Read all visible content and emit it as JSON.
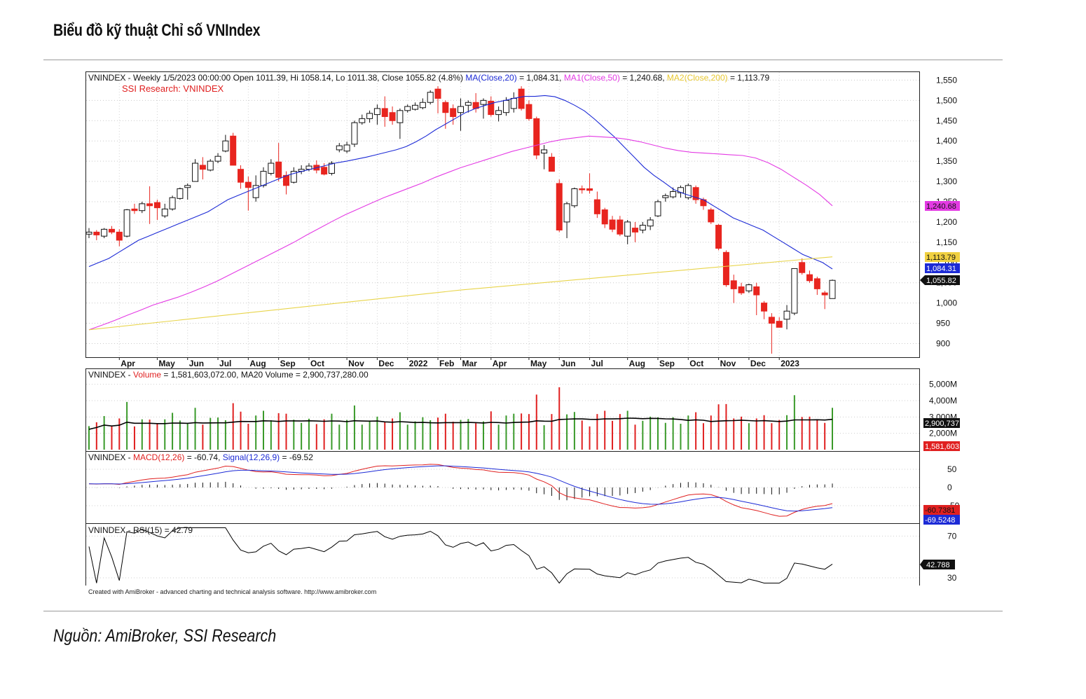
{
  "page": {
    "title": "Biểu đồ kỹ thuật Chỉ số VNIndex",
    "source": "Nguồn: AmiBroker, SSI Research",
    "footer_credit": "Created with AmiBroker - advanced charting and technical analysis software. http://www.amibroker.com"
  },
  "colors": {
    "up": "#ffffff",
    "down": "#e8251f",
    "ma20": "#1c2ad6",
    "ma50": "#e43ae4",
    "ma200": "#e8d44a",
    "vol_up": "#3a9a2a",
    "vol_down": "#e02020",
    "macd": "#e02020",
    "signal": "#1c2ad6",
    "rsi": "#000000"
  },
  "chart_data": [
    {
      "type": "candlestick",
      "panel": "price",
      "header": {
        "name": "VNINDEX",
        "info": "Weekly 1/5/2023 00:00:00 Open 1011.39, Hi 1058.14, Lo 1011.38, Close 1055.82 (4.8%)",
        "ma20_label": "MA(Close,20)",
        "ma20_value": "= 1,084.31,",
        "ma50_label": "MA1(Close,50)",
        "ma50_value": "= 1,240.68,",
        "ma200_label": "MA2(Close,200)",
        "ma200_value": "= 1,113.79",
        "watermark": "SSI Research: VNINDEX"
      },
      "x_labels": [
        "Apr",
        "May",
        "Jun",
        "Jul",
        "Aug",
        "Sep",
        "Oct",
        "Nov",
        "Dec",
        "2022",
        "Feb",
        "Mar",
        "Apr",
        "May",
        "Jun",
        "Jul",
        "Aug",
        "Sep",
        "Oct",
        "Nov",
        "Dec",
        "2023"
      ],
      "x_label_weeks": [
        4,
        9,
        13,
        17,
        21,
        25,
        29,
        34,
        38,
        42,
        46,
        49,
        53,
        58,
        62,
        66,
        71,
        75,
        79,
        83,
        87,
        91
      ],
      "y_ticks": [
        "1,550",
        "1,500",
        "1,450",
        "1,400",
        "1,350",
        "1,300",
        "1,250",
        "1,200",
        "1,150",
        "1,100",
        "1,050",
        "1,000",
        "950",
        "900"
      ],
      "y_tick_values": [
        1550,
        1500,
        1450,
        1400,
        1350,
        1300,
        1250,
        1200,
        1150,
        1100,
        1050,
        1000,
        950,
        900
      ],
      "ylim": [
        868,
        1568
      ],
      "candles": [
        [
          1170,
          1185,
          1160,
          1175
        ],
        [
          1175,
          1180,
          1155,
          1168
        ],
        [
          1165,
          1185,
          1160,
          1182
        ],
        [
          1182,
          1190,
          1170,
          1175
        ],
        [
          1175,
          1182,
          1140,
          1155
        ],
        [
          1165,
          1232,
          1162,
          1230
        ],
        [
          1232,
          1245,
          1220,
          1228
        ],
        [
          1228,
          1250,
          1222,
          1245
        ],
        [
          1245,
          1288,
          1195,
          1240
        ],
        [
          1248,
          1255,
          1205,
          1235
        ],
        [
          1215,
          1245,
          1210,
          1232
        ],
        [
          1232,
          1265,
          1228,
          1260
        ],
        [
          1258,
          1285,
          1255,
          1282
        ],
        [
          1285,
          1295,
          1255,
          1290
        ],
        [
          1300,
          1355,
          1300,
          1345
        ],
        [
          1340,
          1360,
          1305,
          1330
        ],
        [
          1328,
          1355,
          1325,
          1350
        ],
        [
          1350,
          1370,
          1345,
          1362
        ],
        [
          1375,
          1415,
          1372,
          1400
        ],
        [
          1412,
          1420,
          1340,
          1340
        ],
        [
          1330,
          1340,
          1282,
          1298
        ],
        [
          1298,
          1312,
          1228,
          1285
        ],
        [
          1260,
          1315,
          1250,
          1290
        ],
        [
          1290,
          1335,
          1285,
          1325
        ],
        [
          1320,
          1355,
          1315,
          1345
        ],
        [
          1348,
          1395,
          1300,
          1310
        ],
        [
          1315,
          1325,
          1268,
          1290
        ],
        [
          1298,
          1335,
          1295,
          1325
        ],
        [
          1325,
          1340,
          1318,
          1330
        ],
        [
          1330,
          1345,
          1325,
          1338
        ],
        [
          1340,
          1352,
          1320,
          1328
        ],
        [
          1335,
          1345,
          1315,
          1318
        ],
        [
          1320,
          1350,
          1315,
          1345
        ],
        [
          1378,
          1395,
          1372,
          1388
        ],
        [
          1375,
          1398,
          1370,
          1390
        ],
        [
          1392,
          1450,
          1385,
          1445
        ],
        [
          1445,
          1465,
          1440,
          1455
        ],
        [
          1455,
          1475,
          1445,
          1468
        ],
        [
          1465,
          1490,
          1440,
          1480
        ],
        [
          1480,
          1510,
          1435,
          1460
        ],
        [
          1470,
          1485,
          1440,
          1450
        ],
        [
          1445,
          1480,
          1405,
          1475
        ],
        [
          1475,
          1490,
          1470,
          1485
        ],
        [
          1478,
          1495,
          1475,
          1488
        ],
        [
          1482,
          1505,
          1478,
          1495
        ],
        [
          1495,
          1525,
          1490,
          1520
        ],
        [
          1528,
          1535,
          1468,
          1505
        ],
        [
          1495,
          1500,
          1430,
          1470
        ],
        [
          1480,
          1490,
          1440,
          1460
        ],
        [
          1470,
          1505,
          1425,
          1485
        ],
        [
          1488,
          1500,
          1470,
          1495
        ],
        [
          1495,
          1518,
          1470,
          1480
        ],
        [
          1490,
          1505,
          1455,
          1500
        ],
        [
          1498,
          1510,
          1460,
          1465
        ],
        [
          1465,
          1485,
          1448,
          1475
        ],
        [
          1470,
          1508,
          1462,
          1500
        ],
        [
          1480,
          1520,
          1470,
          1505
        ],
        [
          1528,
          1535,
          1475,
          1480
        ],
        [
          1490,
          1500,
          1450,
          1455
        ],
        [
          1455,
          1460,
          1355,
          1365
        ],
        [
          1370,
          1390,
          1330,
          1378
        ],
        [
          1360,
          1370,
          1325,
          1325
        ],
        [
          1295,
          1305,
          1175,
          1180
        ],
        [
          1200,
          1250,
          1160,
          1245
        ],
        [
          1240,
          1285,
          1235,
          1282
        ],
        [
          1282,
          1290,
          1270,
          1280
        ],
        [
          1282,
          1320,
          1270,
          1278
        ],
        [
          1255,
          1275,
          1210,
          1220
        ],
        [
          1230,
          1235,
          1185,
          1195
        ],
        [
          1205,
          1215,
          1175,
          1182
        ],
        [
          1205,
          1215,
          1165,
          1170
        ],
        [
          1165,
          1205,
          1145,
          1200
        ],
        [
          1185,
          1200,
          1150,
          1175
        ],
        [
          1180,
          1200,
          1172,
          1192
        ],
        [
          1190,
          1212,
          1180,
          1205
        ],
        [
          1215,
          1255,
          1212,
          1250
        ],
        [
          1260,
          1270,
          1250,
          1265
        ],
        [
          1262,
          1285,
          1258,
          1275
        ],
        [
          1272,
          1290,
          1260,
          1285
        ],
        [
          1260,
          1295,
          1255,
          1290
        ],
        [
          1285,
          1290,
          1245,
          1255
        ],
        [
          1255,
          1260,
          1230,
          1240
        ],
        [
          1230,
          1235,
          1195,
          1200
        ],
        [
          1192,
          1195,
          1130,
          1135
        ],
        [
          1125,
          1130,
          1040,
          1045
        ],
        [
          1055,
          1070,
          1000,
          1035
        ],
        [
          1040,
          1050,
          1020,
          1025
        ],
        [
          1030,
          1048,
          1025,
          1045
        ],
        [
          1040,
          1050,
          970,
          1020
        ],
        [
          1000,
          1005,
          960,
          980
        ],
        [
          965,
          975,
          875,
          950
        ],
        [
          955,
          965,
          945,
          940
        ],
        [
          960,
          995,
          935,
          980
        ],
        [
          975,
          1085,
          970,
          1085
        ],
        [
          1100,
          1110,
          1070,
          1075
        ],
        [
          1070,
          1080,
          1050,
          1055
        ],
        [
          1060,
          1065,
          1020,
          1035
        ],
        [
          1025,
          1030,
          985,
          1020
        ],
        [
          1011,
          1058,
          1011,
          1056
        ]
      ],
      "ma20": [
        1090,
        1100,
        1110,
        1125,
        1140,
        1155,
        1165,
        1175,
        1185,
        1195,
        1205,
        1215,
        1225,
        1240,
        1255,
        1265,
        1275,
        1285,
        1295,
        1305,
        1315,
        1322,
        1328,
        1334,
        1340,
        1346,
        1350,
        1355,
        1360,
        1366,
        1372,
        1378,
        1386,
        1398,
        1412,
        1428,
        1442,
        1456,
        1470,
        1480,
        1488,
        1495,
        1500,
        1506,
        1510,
        1510,
        1512,
        1509,
        1500,
        1488,
        1474,
        1454,
        1432,
        1410,
        1385,
        1360,
        1335,
        1315,
        1298,
        1280,
        1270,
        1262,
        1255,
        1240,
        1225,
        1210,
        1200,
        1190,
        1180,
        1165,
        1150,
        1135,
        1120,
        1110,
        1100,
        1084
      ],
      "ma20_start": 0,
      "ma50": [
        934,
        945,
        957,
        970,
        982,
        995,
        1005,
        1015,
        1027,
        1040,
        1054,
        1070,
        1086,
        1102,
        1118,
        1134,
        1150,
        1168,
        1185,
        1202,
        1218,
        1232,
        1246,
        1260,
        1272,
        1284,
        1296,
        1310,
        1322,
        1334,
        1344,
        1354,
        1364,
        1374,
        1382,
        1390,
        1398,
        1404,
        1408,
        1412,
        1410,
        1408,
        1404,
        1398,
        1390,
        1382,
        1376,
        1372,
        1370,
        1368,
        1366,
        1364,
        1358,
        1346,
        1330,
        1310,
        1290,
        1268,
        1240
      ],
      "ma50_start": 0,
      "ma200_start_value": 934,
      "ma200_end_value": 1114
    },
    {
      "type": "bar",
      "panel": "volume",
      "header": {
        "name": "VNINDEX",
        "label": "Volume",
        "value": "= 1,581,603,072.00, MA20 Volume = 2,900,737,280.00"
      },
      "y_ticks": [
        "5,000M",
        "4,000M",
        "3,000M",
        "2,000M"
      ],
      "y_tick_values": [
        5000,
        4000,
        3000,
        2000
      ],
      "ylim": [
        1000,
        5800
      ],
      "unit": "M"
    },
    {
      "type": "line",
      "panel": "macd",
      "header": {
        "name": "VNINDEX",
        "macd_label": "MACD(12,26)",
        "macd_value": "= -60.74,",
        "signal_label": "Signal(12,26,9)",
        "signal_value": "= -69.52"
      },
      "y_ticks": [
        "50",
        "0",
        "-50"
      ],
      "y_tick_values": [
        50,
        0,
        -50
      ]
    },
    {
      "type": "line",
      "panel": "rsi",
      "header": {
        "name": "VNINDEX",
        "label": "RSI(15) = 42.79"
      },
      "y_ticks": [
        "70",
        "30"
      ],
      "y_tick_values": [
        70,
        30
      ],
      "ylim": [
        24,
        79
      ]
    }
  ],
  "markers": {
    "ma50": "1,240.68",
    "ma200": "1,113.79",
    "ma20": "1,084.31",
    "close": "1,055.82",
    "vol_ma": "2,900,737",
    "vol": "1,581,603",
    "macd": "-60.7381",
    "signal": "-69.5248",
    "rsi": "42.788"
  }
}
